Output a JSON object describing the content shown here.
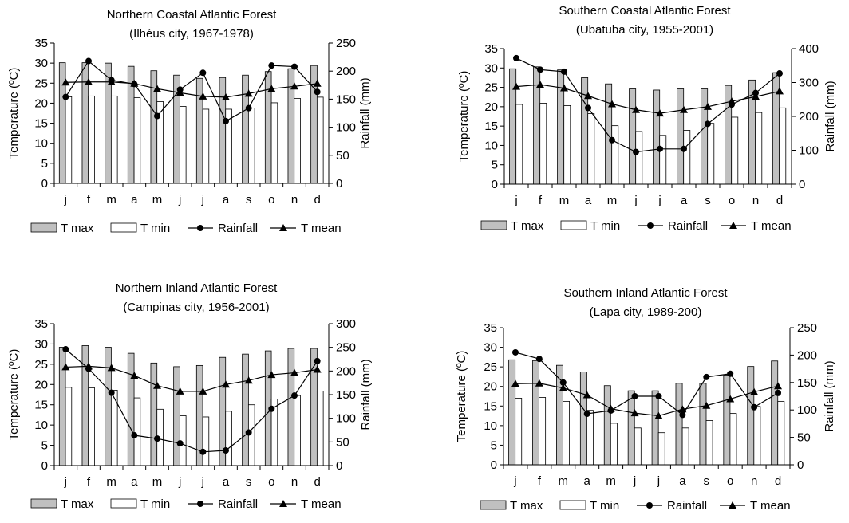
{
  "legend_labels": {
    "tmax": "T max",
    "tmin": "T min",
    "rainfall": "Rainfall",
    "tmean": "T mean"
  },
  "chart_data": [
    {
      "type": "bar",
      "title": "Northern Coastal Atlantic Forest",
      "subtitle": "(Ilhéus city, 1967-1978)",
      "xlabel": "",
      "ylabel": "Temperature (ºC)",
      "y2label": "Rainfall (mm)",
      "categories": [
        "j",
        "f",
        "m",
        "a",
        "m",
        "j",
        "j",
        "a",
        "s",
        "o",
        "n",
        "d"
      ],
      "ylim": [
        0,
        35
      ],
      "yticks": [
        0,
        5,
        10,
        15,
        20,
        25,
        30,
        35
      ],
      "y2lim": [
        0,
        250
      ],
      "y2ticks": [
        0,
        50,
        100,
        150,
        200,
        250
      ],
      "legend": "bottom",
      "series": [
        {
          "name": "T max",
          "kind": "bar",
          "axis": "left",
          "color": "#c0c0c0",
          "values": [
            30.1,
            30.1,
            30.0,
            29.2,
            28.1,
            27.0,
            26.2,
            26.4,
            27.0,
            27.9,
            28.6,
            29.4
          ]
        },
        {
          "name": "T min",
          "kind": "bar",
          "axis": "left",
          "color": "#ffffff",
          "values": [
            21.6,
            21.8,
            21.8,
            21.4,
            20.4,
            19.2,
            18.5,
            18.5,
            18.8,
            20.1,
            21.2,
            21.5
          ]
        },
        {
          "name": "Rainfall",
          "kind": "line",
          "marker": "circle",
          "axis": "right",
          "values": [
            154,
            218,
            184,
            177,
            120,
            167,
            197,
            111,
            134,
            210,
            208,
            163
          ]
        },
        {
          "name": "T mean",
          "kind": "line",
          "marker": "triangle",
          "axis": "left",
          "values": [
            25.2,
            25.3,
            25.3,
            24.9,
            23.6,
            22.6,
            21.7,
            21.5,
            22.4,
            23.6,
            24.2,
            24.9
          ]
        }
      ]
    },
    {
      "type": "bar",
      "title": "Southern Coastal Atlantic Forest",
      "subtitle": "(Ubatuba city, 1955-2001)",
      "xlabel": "",
      "ylabel": "Temperature (ºC)",
      "y2label": "Rainfall (mm)",
      "categories": [
        "j",
        "f",
        "m",
        "a",
        "m",
        "j",
        "j",
        "a",
        "s",
        "o",
        "n",
        "d"
      ],
      "ylim": [
        0,
        35
      ],
      "yticks": [
        0,
        5,
        10,
        15,
        20,
        25,
        30,
        35
      ],
      "y2lim": [
        0,
        400
      ],
      "y2ticks": [
        0,
        100,
        200,
        300,
        400
      ],
      "legend": "bottom",
      "series": [
        {
          "name": "T max",
          "kind": "bar",
          "axis": "left",
          "color": "#c0c0c0",
          "values": [
            29.8,
            30.3,
            29.5,
            27.5,
            25.9,
            24.6,
            24.3,
            24.6,
            24.6,
            25.5,
            26.9,
            28.8
          ]
        },
        {
          "name": "T min",
          "kind": "bar",
          "axis": "left",
          "color": "#ffffff",
          "values": [
            20.6,
            20.9,
            20.3,
            18.2,
            15.1,
            13.6,
            12.6,
            13.9,
            15.7,
            17.3,
            18.5,
            19.7
          ]
        },
        {
          "name": "Rainfall",
          "kind": "line",
          "marker": "circle",
          "axis": "right",
          "values": [
            372,
            338,
            332,
            225,
            130,
            95,
            104,
            104,
            178,
            235,
            269,
            327
          ]
        },
        {
          "name": "T mean",
          "kind": "line",
          "marker": "triangle",
          "axis": "left",
          "values": [
            25.2,
            25.7,
            24.8,
            22.8,
            20.7,
            19.2,
            18.3,
            19.2,
            20.0,
            21.4,
            22.6,
            24.0
          ]
        }
      ]
    },
    {
      "type": "bar",
      "title": "Northern Inland Atlantic Forest",
      "subtitle": "(Campinas city, 1956-2001)",
      "xlabel": "",
      "ylabel": "Temperature (ºC)",
      "y2label": "Rainfall (mm)",
      "categories": [
        "j",
        "f",
        "m",
        "a",
        "m",
        "j",
        "j",
        "a",
        "s",
        "o",
        "n",
        "d"
      ],
      "ylim": [
        0,
        35
      ],
      "yticks": [
        0,
        5,
        10,
        15,
        20,
        25,
        30,
        35
      ],
      "y2lim": [
        0,
        300
      ],
      "y2ticks": [
        0,
        50,
        100,
        150,
        200,
        250,
        300
      ],
      "legend": "bottom",
      "series": [
        {
          "name": "T max",
          "kind": "bar",
          "axis": "left",
          "color": "#c0c0c0",
          "values": [
            29.2,
            29.6,
            29.2,
            27.7,
            25.3,
            24.4,
            24.7,
            26.7,
            27.5,
            28.3,
            28.9,
            28.9
          ]
        },
        {
          "name": "T min",
          "kind": "bar",
          "axis": "left",
          "color": "#ffffff",
          "values": [
            19.3,
            19.2,
            18.6,
            16.7,
            13.9,
            12.3,
            12.0,
            13.4,
            15.0,
            16.4,
            17.3,
            18.4
          ]
        },
        {
          "name": "Rainfall",
          "kind": "line",
          "marker": "circle",
          "axis": "right",
          "values": [
            246,
            205,
            154,
            64,
            57,
            47,
            29,
            32,
            70,
            120,
            148,
            221
          ]
        },
        {
          "name": "T mean",
          "kind": "line",
          "marker": "triangle",
          "axis": "left",
          "values": [
            24.3,
            24.5,
            24.1,
            22.2,
            19.7,
            18.3,
            18.3,
            20.0,
            21.0,
            22.4,
            22.9,
            23.7
          ]
        }
      ]
    },
    {
      "type": "bar",
      "title": "Southern Inland Atlantic Forest",
      "subtitle": "(Lapa city, 1989-200)",
      "xlabel": "",
      "ylabel": "Temperature (ºC)",
      "y2label": "Rainfall (mm)",
      "categories": [
        "j",
        "f",
        "m",
        "a",
        "m",
        "j",
        "j",
        "a",
        "s",
        "o",
        "n",
        "d"
      ],
      "ylim": [
        0,
        35
      ],
      "yticks": [
        0,
        5,
        10,
        15,
        20,
        25,
        30,
        35
      ],
      "y2lim": [
        0,
        250
      ],
      "y2ticks": [
        0,
        50,
        100,
        150,
        200,
        250
      ],
      "legend": "bottom",
      "series": [
        {
          "name": "T max",
          "kind": "bar",
          "axis": "left",
          "color": "#c0c0c0",
          "values": [
            26.8,
            26.6,
            25.4,
            23.7,
            20.2,
            18.9,
            18.9,
            20.8,
            20.8,
            22.9,
            25.1,
            26.5
          ]
        },
        {
          "name": "T min",
          "kind": "bar",
          "axis": "left",
          "color": "#ffffff",
          "values": [
            17.0,
            17.2,
            16.2,
            13.9,
            10.6,
            9.4,
            8.2,
            9.4,
            11.3,
            13.1,
            14.9,
            16.2
          ]
        },
        {
          "name": "Rainfall",
          "kind": "line",
          "marker": "circle",
          "axis": "right",
          "values": [
            205,
            193,
            150,
            93,
            99,
            125,
            125,
            91,
            160,
            166,
            105,
            131
          ]
        },
        {
          "name": "T mean",
          "kind": "line",
          "marker": "triangle",
          "axis": "left",
          "values": [
            20.7,
            20.8,
            19.6,
            17.8,
            14.3,
            13.2,
            12.5,
            14.2,
            15.1,
            16.8,
            18.6,
            20.1
          ]
        }
      ]
    }
  ]
}
